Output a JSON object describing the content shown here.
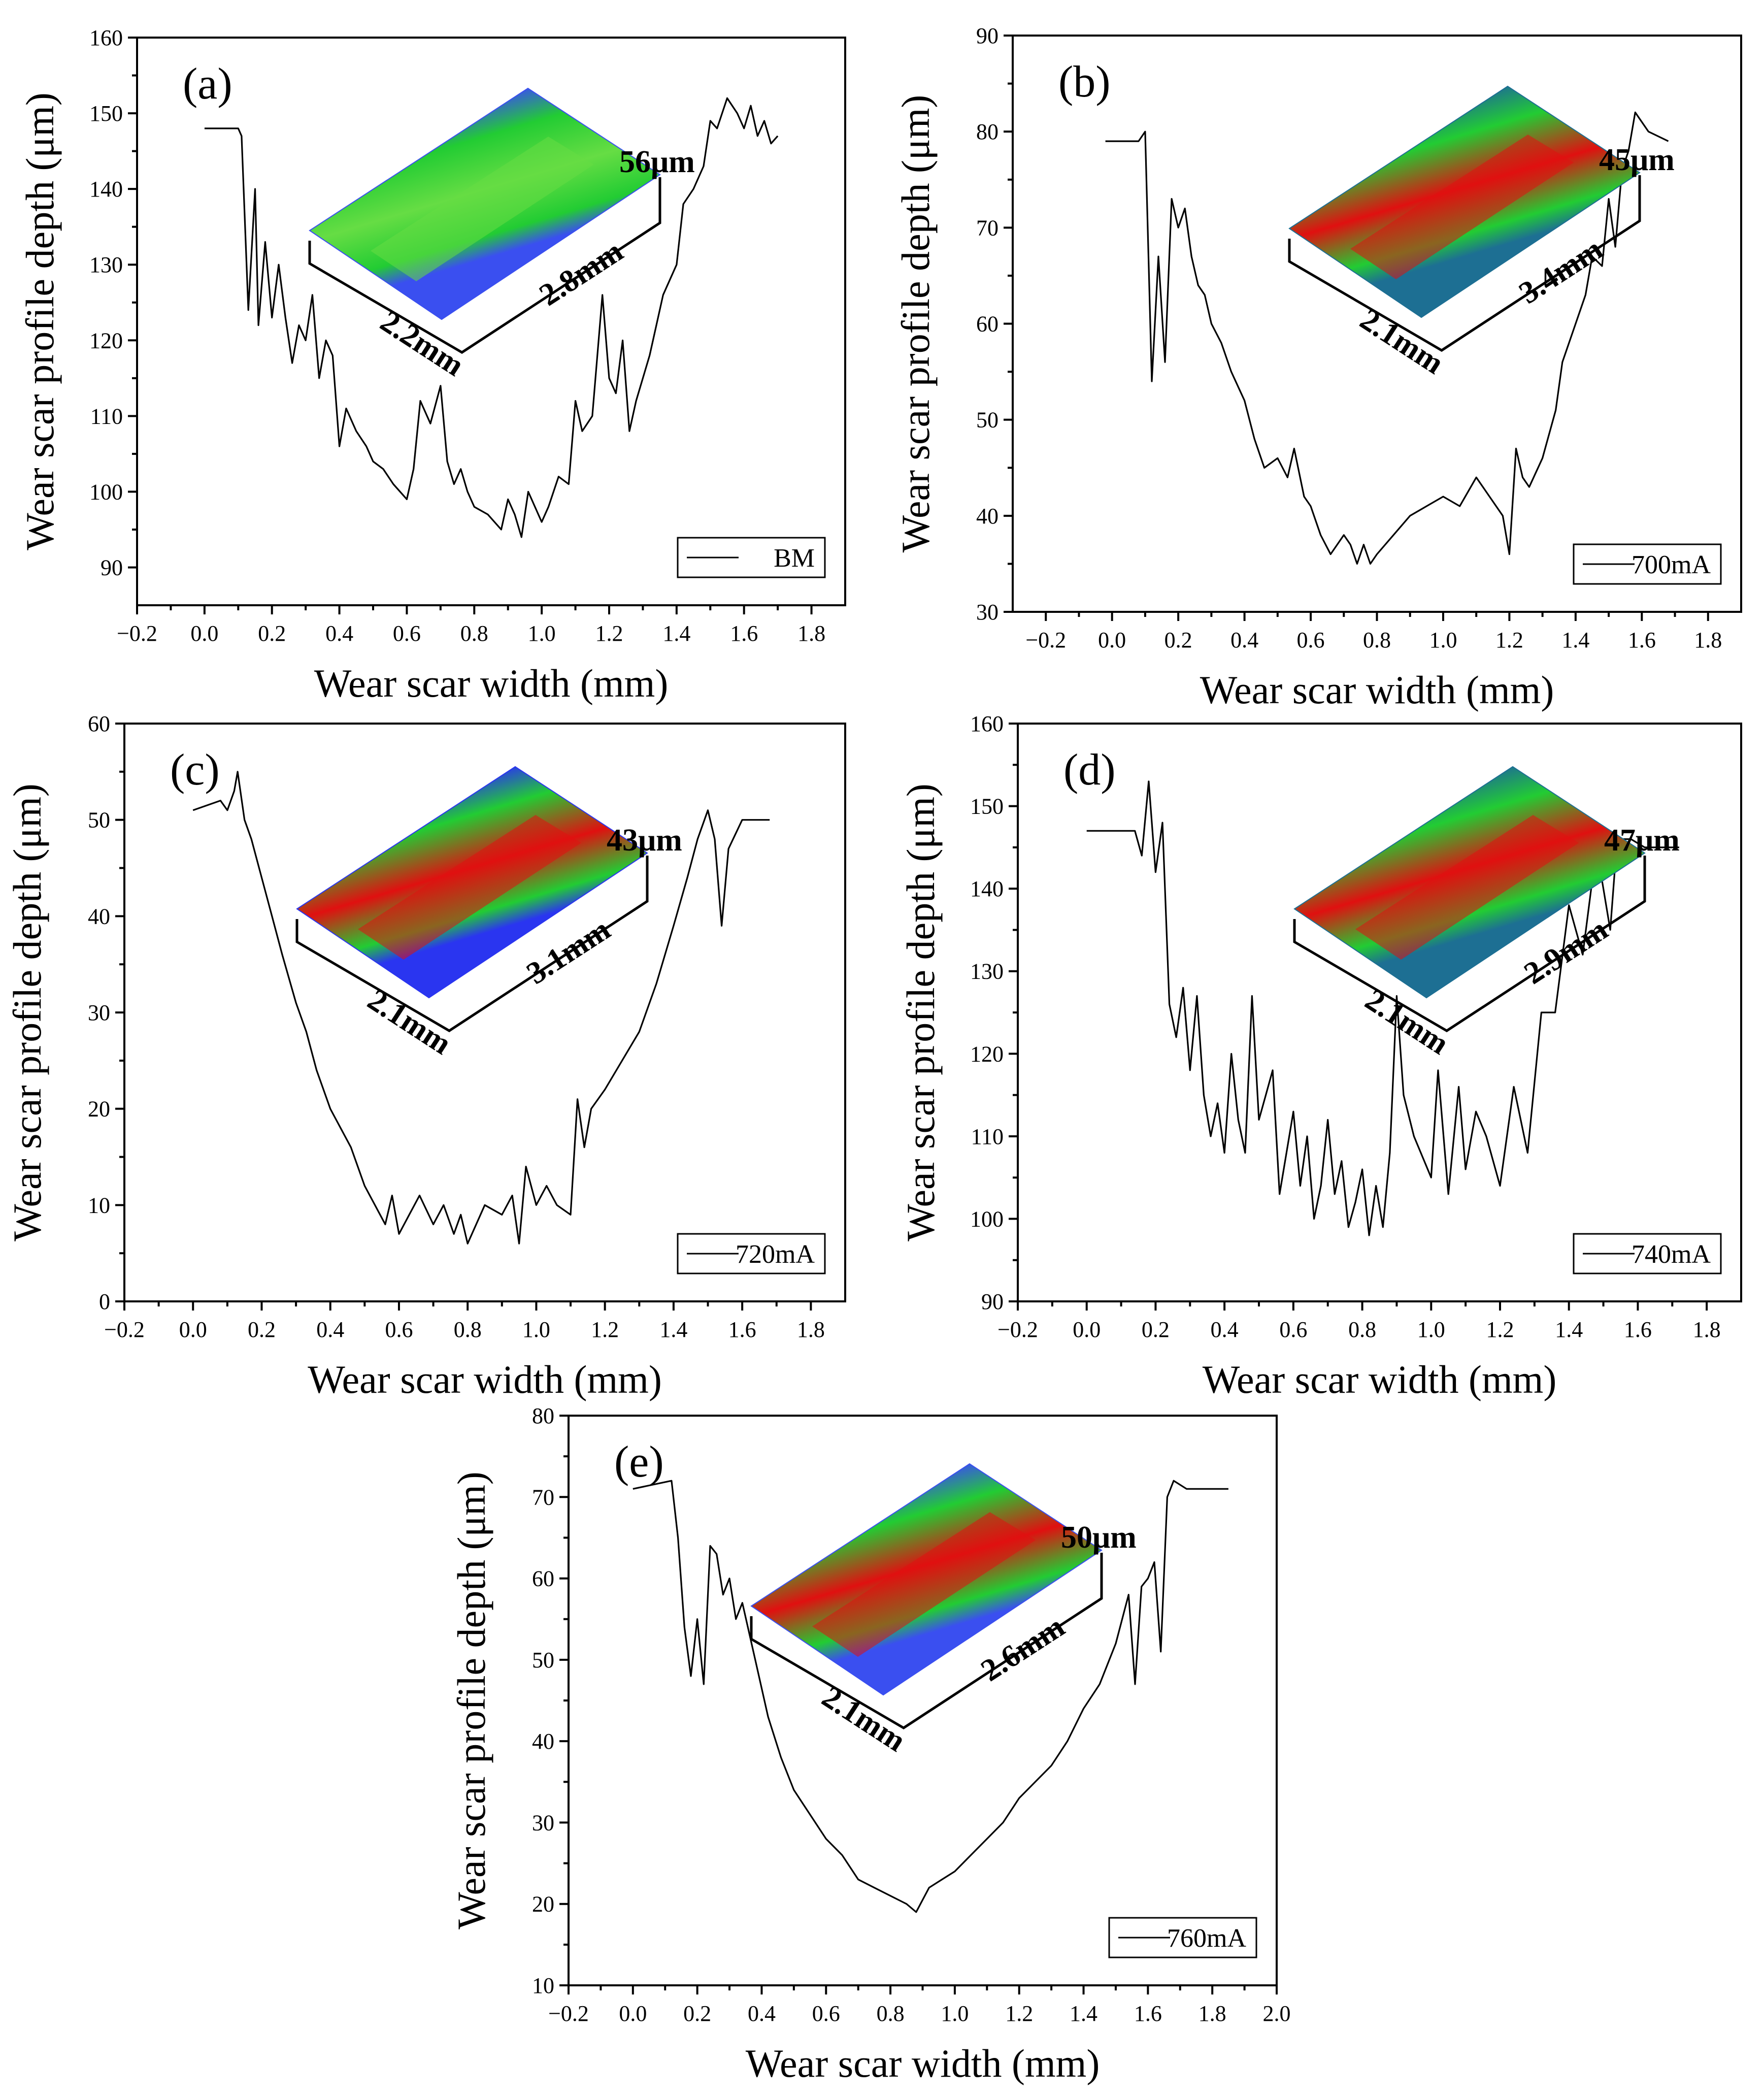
{
  "chart_data": [
    {
      "type": "line",
      "panel": "(a)",
      "xlabel": "Wear scar width (mm)",
      "ylabel": "Wear scar profile depth (μm)",
      "xlim": [
        -0.2,
        1.9
      ],
      "ylim": [
        85,
        160
      ],
      "xticks": [
        -0.2,
        0.0,
        0.2,
        0.4,
        0.6,
        0.8,
        1.0,
        1.2,
        1.4,
        1.6,
        1.8
      ],
      "xtick_labels": [
        "−0.2",
        "0.0",
        "0.2",
        "0.4",
        "0.6",
        "0.8",
        "1.0",
        "1.2",
        "1.4",
        "1.6",
        "1.8"
      ],
      "yticks": [
        90,
        100,
        110,
        120,
        130,
        140,
        150,
        160
      ],
      "legend": "BM",
      "inset": {
        "depth": "56μm",
        "width": "2.2mm",
        "length": "2.8mm",
        "bg": "#3a4ff0",
        "mid": "#22cc33",
        "core": "#66dd44"
      },
      "series": [
        {
          "name": "BM",
          "x": [
            0.0,
            0.1,
            0.11,
            0.13,
            0.15,
            0.16,
            0.18,
            0.2,
            0.22,
            0.24,
            0.26,
            0.28,
            0.3,
            0.32,
            0.34,
            0.36,
            0.38,
            0.4,
            0.42,
            0.45,
            0.48,
            0.5,
            0.53,
            0.56,
            0.6,
            0.62,
            0.64,
            0.67,
            0.7,
            0.72,
            0.74,
            0.76,
            0.78,
            0.8,
            0.84,
            0.88,
            0.9,
            0.92,
            0.94,
            0.96,
            1.0,
            1.02,
            1.05,
            1.08,
            1.1,
            1.12,
            1.15,
            1.18,
            1.2,
            1.22,
            1.24,
            1.26,
            1.28,
            1.3,
            1.32,
            1.34,
            1.36,
            1.4,
            1.42,
            1.45,
            1.48,
            1.5,
            1.52,
            1.55,
            1.58,
            1.6,
            1.62,
            1.64,
            1.66,
            1.68,
            1.7
          ],
          "y": [
            148,
            148,
            147,
            124,
            140,
            122,
            133,
            123,
            130,
            123,
            117,
            122,
            120,
            126,
            115,
            120,
            118,
            106,
            111,
            108,
            106,
            104,
            103,
            101,
            99,
            103,
            112,
            109,
            114,
            104,
            101,
            103,
            100,
            98,
            97,
            95,
            99,
            97,
            94,
            100,
            96,
            98,
            102,
            101,
            112,
            108,
            110,
            126,
            115,
            113,
            120,
            108,
            112,
            115,
            118,
            122,
            126,
            130,
            138,
            140,
            143,
            149,
            148,
            152,
            150,
            148,
            151,
            147,
            149,
            146,
            147
          ]
        }
      ]
    },
    {
      "type": "line",
      "panel": "(b)",
      "xlabel": "Wear scar width (mm)",
      "ylabel": "Wear scar profile depth (μm)",
      "xlim": [
        -0.3,
        1.9
      ],
      "ylim": [
        30,
        90
      ],
      "xticks": [
        -0.2,
        0.0,
        0.2,
        0.4,
        0.6,
        0.8,
        1.0,
        1.2,
        1.4,
        1.6,
        1.8
      ],
      "xtick_labels": [
        "−0.2",
        "0.0",
        "0.2",
        "0.4",
        "0.6",
        "0.8",
        "1.0",
        "1.2",
        "1.4",
        "1.6",
        "1.8"
      ],
      "yticks": [
        30,
        40,
        50,
        60,
        70,
        80,
        90
      ],
      "legend": "700mA",
      "inset": {
        "depth": "45μm",
        "width": "2.1mm",
        "length": "3.4mm",
        "bg": "#1d6f93",
        "mid": "#22cc33",
        "core": "#e01010"
      },
      "series": [
        {
          "name": "700mA",
          "x": [
            -0.02,
            0.08,
            0.1,
            0.12,
            0.14,
            0.16,
            0.18,
            0.2,
            0.22,
            0.24,
            0.26,
            0.28,
            0.3,
            0.33,
            0.36,
            0.4,
            0.43,
            0.46,
            0.5,
            0.53,
            0.55,
            0.58,
            0.6,
            0.63,
            0.66,
            0.7,
            0.72,
            0.74,
            0.76,
            0.78,
            0.8,
            0.85,
            0.9,
            0.95,
            1.0,
            1.05,
            1.1,
            1.14,
            1.18,
            1.2,
            1.22,
            1.24,
            1.26,
            1.3,
            1.34,
            1.36,
            1.4,
            1.43,
            1.45,
            1.48,
            1.5,
            1.52,
            1.54,
            1.56,
            1.58,
            1.62,
            1.68
          ],
          "y": [
            79,
            79,
            80,
            54,
            67,
            56,
            73,
            70,
            72,
            67,
            64,
            63,
            60,
            58,
            55,
            52,
            48,
            45,
            46,
            44,
            47,
            42,
            41,
            38,
            36,
            38,
            37,
            35,
            37,
            35,
            36,
            38,
            40,
            41,
            42,
            41,
            44,
            42,
            40,
            36,
            47,
            44,
            43,
            46,
            51,
            56,
            60,
            63,
            67,
            66,
            73,
            68,
            76,
            78,
            82,
            80,
            79
          ]
        }
      ]
    },
    {
      "type": "line",
      "panel": "(c)",
      "xlabel": "Wear scar width (mm)",
      "ylabel": "Wear scar profile depth (μm)",
      "xlim": [
        -0.2,
        1.9
      ],
      "ylim": [
        0,
        60
      ],
      "xticks": [
        -0.2,
        0.0,
        0.2,
        0.4,
        0.6,
        0.8,
        1.0,
        1.2,
        1.4,
        1.6,
        1.8
      ],
      "xtick_labels": [
        "−0.2",
        "0.0",
        "0.2",
        "0.4",
        "0.6",
        "0.8",
        "1.0",
        "1.2",
        "1.4",
        "1.6",
        "1.8"
      ],
      "yticks": [
        0,
        10,
        20,
        30,
        40,
        50,
        60
      ],
      "legend": "720mA",
      "inset": {
        "depth": "43μm",
        "width": "2.1mm",
        "length": "3.1mm",
        "bg": "#2a35f0",
        "mid": "#22cc33",
        "core": "#e01010"
      },
      "series": [
        {
          "name": "720mA",
          "x": [
            0.0,
            0.08,
            0.1,
            0.12,
            0.13,
            0.15,
            0.17,
            0.2,
            0.23,
            0.26,
            0.3,
            0.33,
            0.36,
            0.4,
            0.43,
            0.46,
            0.5,
            0.53,
            0.56,
            0.58,
            0.6,
            0.63,
            0.66,
            0.7,
            0.73,
            0.76,
            0.78,
            0.8,
            0.85,
            0.9,
            0.93,
            0.95,
            0.97,
            1.0,
            1.03,
            1.06,
            1.1,
            1.12,
            1.14,
            1.16,
            1.2,
            1.25,
            1.3,
            1.35,
            1.4,
            1.44,
            1.47,
            1.5,
            1.52,
            1.54,
            1.56,
            1.6,
            1.62,
            1.68
          ],
          "y": [
            51,
            52,
            51,
            53,
            55,
            50,
            48,
            44,
            40,
            36,
            31,
            28,
            24,
            20,
            18,
            16,
            12,
            10,
            8,
            11,
            7,
            9,
            11,
            8,
            10,
            7,
            9,
            6,
            10,
            9,
            11,
            6,
            14,
            10,
            12,
            10,
            9,
            21,
            16,
            20,
            22,
            25,
            28,
            33,
            39,
            44,
            48,
            51,
            48,
            39,
            47,
            50,
            50,
            50
          ]
        }
      ]
    },
    {
      "type": "line",
      "panel": "(d)",
      "xlabel": "Wear scar width (mm)",
      "ylabel": "Wear scar profile depth (μm)",
      "xlim": [
        -0.2,
        1.9
      ],
      "ylim": [
        90,
        160
      ],
      "xticks": [
        -0.2,
        0.0,
        0.2,
        0.4,
        0.6,
        0.8,
        1.0,
        1.2,
        1.4,
        1.6,
        1.8
      ],
      "xtick_labels": [
        "−0.2",
        "0.0",
        "0.2",
        "0.4",
        "0.6",
        "0.8",
        "1.0",
        "1.2",
        "1.4",
        "1.6",
        "1.8"
      ],
      "yticks": [
        90,
        100,
        110,
        120,
        130,
        140,
        150,
        160
      ],
      "legend": "740mA",
      "inset": {
        "depth": "47μm",
        "width": "2.1mm",
        "length": "2.9mm",
        "bg": "#1d6f93",
        "mid": "#22cc33",
        "core": "#e01010"
      },
      "series": [
        {
          "name": "740mA",
          "x": [
            0.0,
            0.1,
            0.14,
            0.16,
            0.18,
            0.2,
            0.22,
            0.24,
            0.26,
            0.28,
            0.3,
            0.32,
            0.34,
            0.36,
            0.38,
            0.4,
            0.42,
            0.44,
            0.46,
            0.48,
            0.5,
            0.52,
            0.54,
            0.56,
            0.58,
            0.6,
            0.62,
            0.64,
            0.66,
            0.68,
            0.7,
            0.72,
            0.74,
            0.76,
            0.78,
            0.8,
            0.82,
            0.84,
            0.86,
            0.88,
            0.9,
            0.92,
            0.95,
            1.0,
            1.02,
            1.05,
            1.08,
            1.1,
            1.13,
            1.16,
            1.2,
            1.24,
            1.28,
            1.32,
            1.36,
            1.4,
            1.44,
            1.48,
            1.5,
            1.52,
            1.54,
            1.58,
            1.62,
            1.68,
            1.72
          ],
          "y": [
            147,
            147,
            147,
            144,
            153,
            142,
            148,
            126,
            122,
            128,
            118,
            127,
            115,
            110,
            114,
            108,
            120,
            112,
            108,
            127,
            112,
            115,
            118,
            103,
            108,
            113,
            104,
            110,
            100,
            104,
            112,
            103,
            107,
            99,
            102,
            106,
            98,
            104,
            99,
            108,
            127,
            115,
            110,
            105,
            118,
            103,
            116,
            106,
            113,
            110,
            104,
            116,
            108,
            125,
            125,
            138,
            132,
            145,
            140,
            135,
            146,
            146,
            145,
            145,
            145
          ]
        }
      ]
    },
    {
      "type": "line",
      "panel": "(e)",
      "xlabel": "Wear scar width (mm)",
      "ylabel": "Wear scar profile depth (μm)",
      "xlim": [
        -0.2,
        2.0
      ],
      "ylim": [
        10,
        80
      ],
      "xticks": [
        -0.2,
        0.0,
        0.2,
        0.4,
        0.6,
        0.8,
        1.0,
        1.2,
        1.4,
        1.6,
        1.8,
        2.0
      ],
      "xtick_labels": [
        "−0.2",
        "0.0",
        "0.2",
        "0.4",
        "0.6",
        "0.8",
        "1.0",
        "1.2",
        "1.4",
        "1.6",
        "1.8",
        "2.0"
      ],
      "yticks": [
        10,
        20,
        30,
        40,
        50,
        60,
        70,
        80
      ],
      "legend": "760mA",
      "inset": {
        "depth": "50μm",
        "width": "2.1mm",
        "length": "2.6mm",
        "bg": "#3a4ff0",
        "mid": "#22cc33",
        "core": "#e01010"
      },
      "series": [
        {
          "name": "760mA",
          "x": [
            0.0,
            0.12,
            0.14,
            0.16,
            0.18,
            0.2,
            0.22,
            0.24,
            0.26,
            0.28,
            0.3,
            0.32,
            0.34,
            0.38,
            0.42,
            0.46,
            0.5,
            0.55,
            0.6,
            0.65,
            0.7,
            0.75,
            0.8,
            0.85,
            0.88,
            0.92,
            0.96,
            1.0,
            1.05,
            1.1,
            1.15,
            1.2,
            1.25,
            1.3,
            1.35,
            1.4,
            1.45,
            1.5,
            1.54,
            1.56,
            1.58,
            1.6,
            1.62,
            1.64,
            1.66,
            1.68,
            1.72,
            1.8,
            1.85
          ],
          "y": [
            71,
            72,
            65,
            54,
            48,
            55,
            47,
            64,
            63,
            58,
            60,
            55,
            57,
            50,
            43,
            38,
            34,
            31,
            28,
            26,
            23,
            22,
            21,
            20,
            19,
            22,
            23,
            24,
            26,
            28,
            30,
            33,
            35,
            37,
            40,
            44,
            47,
            52,
            58,
            47,
            59,
            60,
            62,
            51,
            70,
            72,
            71,
            71,
            71
          ]
        }
      ]
    }
  ]
}
